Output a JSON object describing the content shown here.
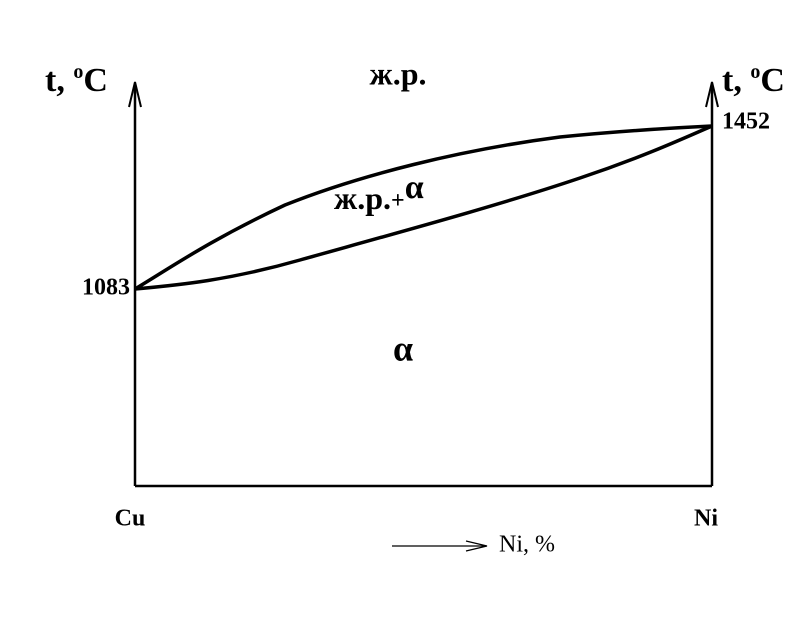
{
  "axes": {
    "left_label": {
      "text": "t,",
      "sup": "o",
      "unit": "C"
    },
    "right_label": {
      "text": "t,",
      "sup": "o",
      "unit": "C"
    },
    "left_point": "1083",
    "right_point": "1452",
    "left_component": "Cu",
    "right_component": "Ni",
    "composition_label": "Ni, %"
  },
  "regions": {
    "liquid": "ж.р.",
    "two_phase": {
      "text": "ж.р.",
      "plus": "+",
      "phase": "α"
    },
    "solid": "α"
  }
}
